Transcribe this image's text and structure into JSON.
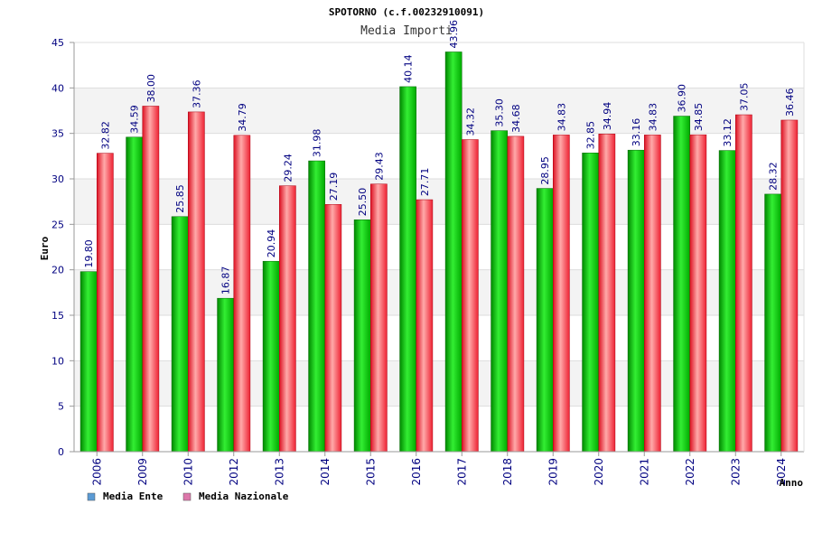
{
  "chart_data": {
    "type": "bar",
    "title": "SPOTORNO (c.f.00232910091)",
    "subtitle": "Media Importi",
    "xlabel": "Anno",
    "ylabel": "Euro",
    "ylim": [
      0,
      45
    ],
    "yticks": [
      0,
      5,
      10,
      15,
      20,
      25,
      30,
      35,
      40,
      45
    ],
    "grid": true,
    "legend_position": "bottom-left",
    "categories": [
      "2006",
      "2009",
      "2010",
      "2012",
      "2013",
      "2014",
      "2015",
      "2016",
      "2017",
      "2018",
      "2019",
      "2020",
      "2021",
      "2022",
      "2023",
      "2024"
    ],
    "series": [
      {
        "name": "Media Ente",
        "color": "#00cc00",
        "legend_color": "#5b9bd5",
        "values": [
          19.8,
          34.59,
          25.85,
          16.87,
          20.94,
          31.98,
          25.5,
          40.14,
          43.96,
          35.3,
          28.95,
          32.85,
          33.16,
          36.9,
          33.12,
          28.32
        ],
        "labels": [
          "19.80",
          "34.59",
          "25.85",
          "16.87",
          "20.94",
          "31.98",
          "25.50",
          "40.14",
          "43.96",
          "35.30",
          "28.95",
          "32.85",
          "33.16",
          "36.90",
          "33.12",
          "28.32"
        ]
      },
      {
        "name": "Media Nazionale",
        "color": "#ee2233",
        "legend_color": "#dd77aa",
        "values": [
          32.82,
          38.0,
          37.36,
          34.79,
          29.24,
          27.19,
          29.43,
          27.71,
          34.32,
          34.68,
          34.83,
          34.94,
          34.83,
          34.85,
          37.05,
          36.46
        ],
        "labels": [
          "32.82",
          "38.00",
          "37.36",
          "34.79",
          "29.24",
          "27.19",
          "29.43",
          "27.71",
          "34.32",
          "34.68",
          "34.83",
          "34.94",
          "34.83",
          "34.85",
          "37.05",
          "36.46"
        ]
      }
    ]
  }
}
